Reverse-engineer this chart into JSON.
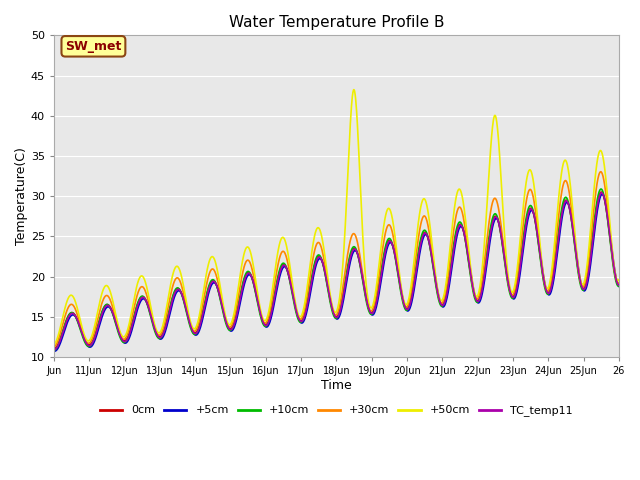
{
  "title": "Water Temperature Profile B",
  "xlabel": "Time",
  "ylabel": "Temperature(C)",
  "ylim": [
    10,
    50
  ],
  "xlim": [
    0,
    16
  ],
  "background_color": "#e8e8e8",
  "annotation_text": "SW_met",
  "annotation_color": "#8B0000",
  "annotation_bg": "#ffff99",
  "annotation_border": "#8B4513",
  "series_colors": [
    "#cc0000",
    "#0000cc",
    "#00bb00",
    "#ff8800",
    "#eeee00",
    "#aa00aa"
  ],
  "series_labels": [
    "0cm",
    "+5cm",
    "+10cm",
    "+30cm",
    "+50cm",
    "TC_temp11"
  ],
  "xtick_labels": [
    "Jun",
    "11Jun",
    "12Jun",
    "13Jun",
    "14Jun",
    "15Jun",
    "16Jun",
    "17Jun",
    "18Jun",
    "19Jun",
    "20Jun",
    "21Jun",
    "22Jun",
    "23Jun",
    "24Jun",
    "25Jun",
    "26"
  ],
  "xtick_positions": [
    0,
    1,
    2,
    3,
    4,
    5,
    6,
    7,
    8,
    9,
    10,
    11,
    12,
    13,
    14,
    15,
    16
  ],
  "ytick_labels": [
    "10",
    "15",
    "20",
    "25",
    "30",
    "35",
    "40",
    "45",
    "50"
  ],
  "ytick_positions": [
    10,
    15,
    20,
    25,
    30,
    35,
    40,
    45,
    50
  ],
  "grid_color": "#ffffff",
  "spine_color": "#aaaaaa"
}
